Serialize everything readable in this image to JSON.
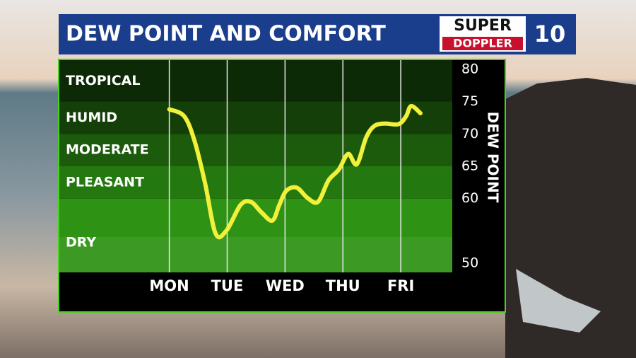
{
  "chart_data": {
    "type": "line",
    "title": "DEW POINT AND COMFORT",
    "logo": {
      "top": "SUPER",
      "bottom": "DOPPLER",
      "number": "10"
    },
    "y_axis_label": "DEW POINT",
    "ylim": [
      48.6,
      81.4
    ],
    "yticks": [
      50,
      60,
      65,
      70,
      75,
      80
    ],
    "xlim": [
      -1.9,
      4.89
    ],
    "xticks": [
      {
        "value": 0,
        "label": "MON"
      },
      {
        "value": 1,
        "label": "TUE"
      },
      {
        "value": 2,
        "label": "WED"
      },
      {
        "value": 3,
        "label": "THU"
      },
      {
        "value": 4,
        "label": "FRI"
      }
    ],
    "bands": [
      {
        "name": "TROPICAL",
        "from": 75,
        "to": 81.4,
        "color": "#0d2a06"
      },
      {
        "name": "HUMID",
        "from": 70,
        "to": 75,
        "color": "#143f09"
      },
      {
        "name": "MODERATE",
        "from": 65,
        "to": 70,
        "color": "#1c5a0c"
      },
      {
        "name": "PLEASANT",
        "from": 60,
        "to": 65,
        "color": "#247810"
      },
      {
        "name": "DRY",
        "from": 48.6,
        "to": 60,
        "color": "#2e9214"
      }
    ],
    "series": [
      {
        "name": "Dew point",
        "color": "#f1f03a",
        "x": [
          0,
          0.26,
          0.44,
          0.62,
          0.8,
          0.99,
          1.23,
          1.41,
          1.59,
          1.78,
          1.9,
          2.02,
          2.2,
          2.39,
          2.57,
          2.75,
          2.93,
          3.09,
          3.24,
          3.4,
          3.54,
          3.72,
          3.96,
          4.09,
          4.18,
          4.34
        ],
        "values": [
          73.8,
          72.7,
          68.8,
          62.3,
          54.6,
          55.1,
          59.0,
          59.5,
          57.9,
          56.6,
          59.0,
          61.2,
          61.7,
          60.1,
          59.5,
          62.8,
          64.5,
          66.9,
          65.3,
          69.4,
          71.2,
          71.6,
          71.5,
          72.7,
          74.3,
          73.2
        ]
      }
    ],
    "grid": true
  }
}
